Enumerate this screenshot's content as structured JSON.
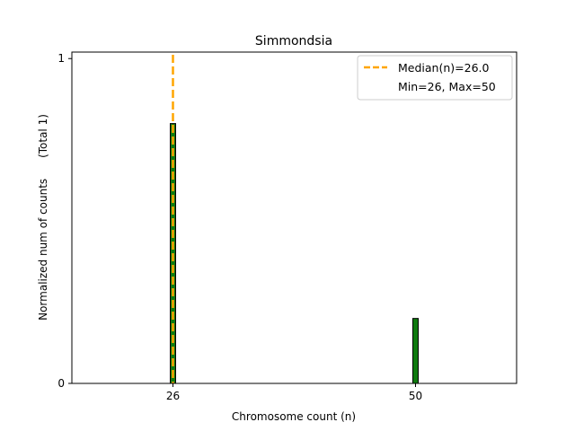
{
  "chart_data": {
    "type": "bar",
    "title": "Simmondsia",
    "xlabel": "Chromosome count (n)",
    "ylabel": "Normalized num of counts      (Total 1)",
    "xlim": [
      16,
      60
    ],
    "ylim": [
      0,
      1.02
    ],
    "x": [
      26,
      50
    ],
    "values": [
      0.8,
      0.2
    ],
    "x_ticks": [
      26,
      50
    ],
    "y_ticks": [
      0,
      1
    ],
    "y_tick_labels": [
      "0",
      "1"
    ],
    "median_line": {
      "x": 26.0,
      "label": "Median(n)=26.0"
    },
    "legend": {
      "position": "top-right",
      "entries": [
        "Median(n)=26.0",
        "Min=26, Max=50"
      ]
    },
    "bar_color": "#0f7a0f",
    "bar_edge_color": "#000000",
    "median_color": "#ffa500"
  }
}
